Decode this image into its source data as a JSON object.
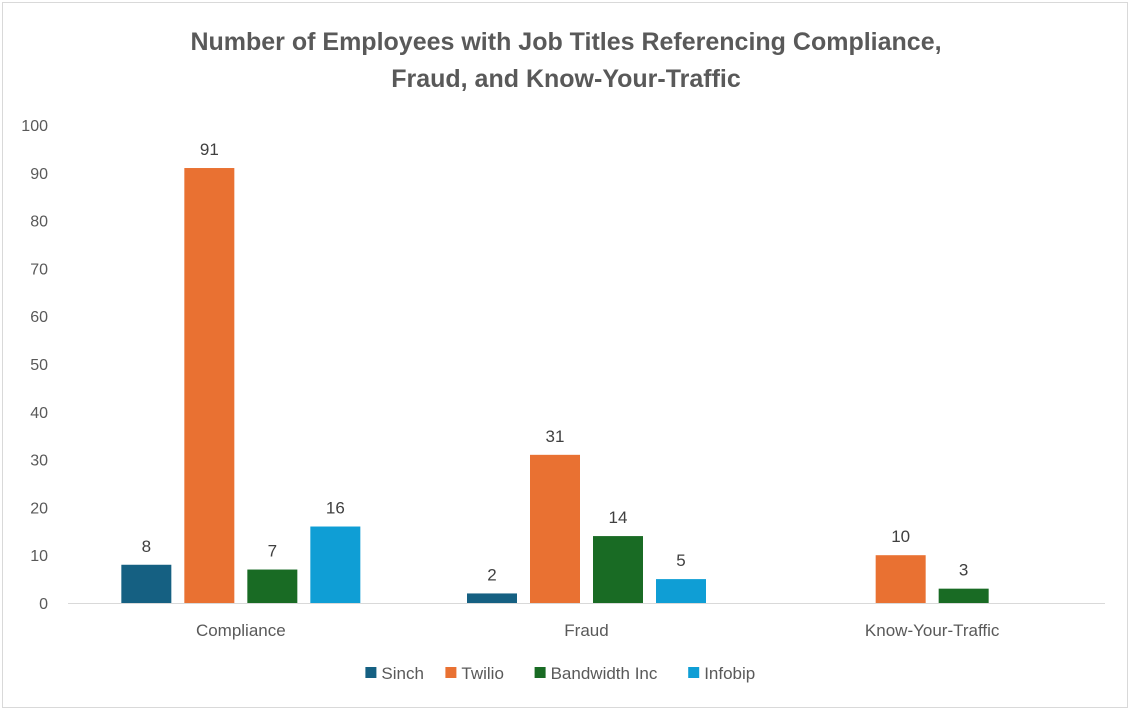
{
  "chart_data": {
    "type": "bar",
    "title_line1": "Number of Employees with Job Titles Referencing Compliance,",
    "title_line2": "Fraud, and Know-Your-Traffic",
    "categories": [
      "Compliance",
      "Fraud",
      "Know-Your-Traffic"
    ],
    "series": [
      {
        "name": "Sinch",
        "color": "#156082",
        "values": [
          8,
          2,
          null
        ]
      },
      {
        "name": "Twilio",
        "color": "#E97132",
        "values": [
          91,
          31,
          10
        ]
      },
      {
        "name": "Bandwidth Inc",
        "color": "#196B24",
        "values": [
          7,
          14,
          3
        ]
      },
      {
        "name": "Infobip",
        "color": "#0F9ED5",
        "values": [
          16,
          5,
          null
        ]
      }
    ],
    "ylim": [
      0,
      100
    ],
    "yticks": [
      0,
      10,
      20,
      30,
      40,
      50,
      60,
      70,
      80,
      90,
      100
    ],
    "xlabel": "",
    "ylabel": "",
    "grid": false,
    "legend": "bottom",
    "data_labels": true
  }
}
